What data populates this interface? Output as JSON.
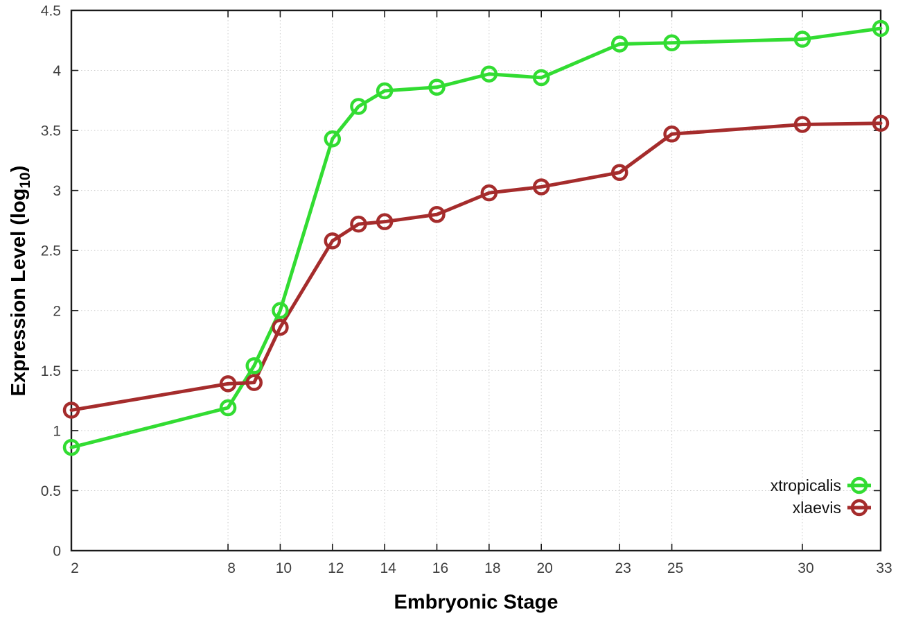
{
  "chart_data": {
    "type": "line",
    "title": "",
    "xlabel": "Embryonic Stage",
    "ylabel": {
      "pre": "Expression Level (log",
      "sub": "10",
      "post": ")"
    },
    "x": [
      2,
      8,
      9,
      10,
      12,
      13,
      14,
      16,
      18,
      20,
      23,
      25,
      30,
      33
    ],
    "series": [
      {
        "name": "xtropicalis",
        "color": "#32dc32",
        "values": [
          0.86,
          1.19,
          1.54,
          2.0,
          3.43,
          3.7,
          3.83,
          3.86,
          3.97,
          3.94,
          4.22,
          4.23,
          4.26,
          4.35
        ]
      },
      {
        "name": "xlaevis",
        "color": "#a52c2c",
        "values": [
          1.17,
          1.39,
          1.4,
          1.86,
          2.58,
          2.72,
          2.74,
          2.8,
          2.98,
          3.03,
          3.15,
          3.47,
          3.55,
          3.56
        ]
      }
    ],
    "xticks": {
      "values": [
        2,
        8,
        10,
        12,
        14,
        16,
        18,
        20,
        23,
        25,
        30,
        33
      ],
      "labels": [
        "2",
        "8",
        "10",
        "12",
        "14",
        "16",
        "18",
        "20",
        "23",
        "25",
        "30",
        "33"
      ]
    },
    "yticks": {
      "values": [
        0,
        0.5,
        1,
        1.5,
        2,
        2.5,
        3,
        3.5,
        4,
        4.5
      ],
      "labels": [
        "0",
        "0.5",
        "1",
        "1.5",
        "2",
        "2.5",
        "3",
        "3.5",
        "4",
        "4.5"
      ]
    },
    "xlim": [
      2,
      33
    ],
    "ylim": [
      0,
      4.5
    ],
    "grid": true,
    "grid_style": "dotted",
    "legend_position": "inside-bottom-right",
    "marker": "open-circle",
    "axis_color": "#1a1a1a",
    "grid_color": "#c9c9c9",
    "background": "#ffffff"
  }
}
